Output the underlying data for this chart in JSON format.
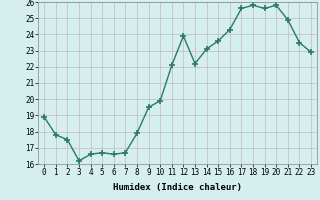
{
  "x": [
    0,
    1,
    2,
    3,
    4,
    5,
    6,
    7,
    8,
    9,
    10,
    11,
    12,
    13,
    14,
    15,
    16,
    17,
    18,
    19,
    20,
    21,
    22,
    23
  ],
  "y": [
    18.9,
    17.8,
    17.5,
    16.2,
    16.6,
    16.7,
    16.6,
    16.7,
    17.9,
    19.5,
    19.9,
    22.1,
    23.9,
    22.2,
    23.1,
    23.6,
    24.3,
    25.6,
    25.8,
    25.6,
    25.8,
    24.9,
    23.5,
    22.9
  ],
  "line_color": "#2a7a68",
  "marker": "+",
  "marker_size": 4,
  "marker_lw": 1.2,
  "bg_color": "#d5efee",
  "grid_color": "#c8b8b8",
  "xlabel": "Humidex (Indice chaleur)",
  "ylim": [
    16,
    26
  ],
  "xlim": [
    -0.5,
    23.5
  ],
  "yticks": [
    16,
    17,
    18,
    19,
    20,
    21,
    22,
    23,
    24,
    25,
    26
  ],
  "xticks": [
    0,
    1,
    2,
    3,
    4,
    5,
    6,
    7,
    8,
    9,
    10,
    11,
    12,
    13,
    14,
    15,
    16,
    17,
    18,
    19,
    20,
    21,
    22,
    23
  ],
  "xlabel_fontsize": 6.5,
  "tick_fontsize": 5.5,
  "line_width": 1.0
}
